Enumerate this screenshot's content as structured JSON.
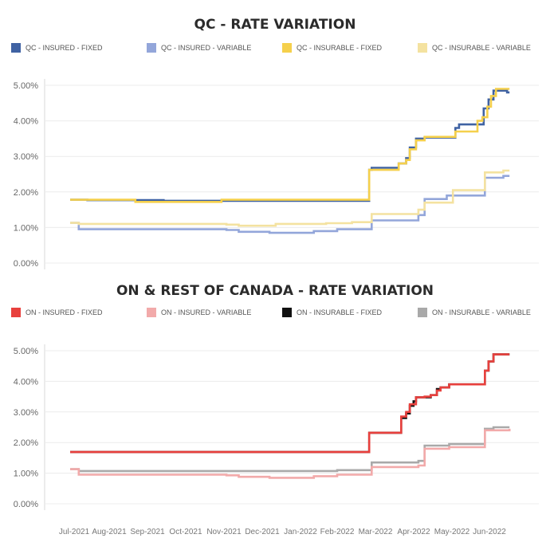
{
  "colors": {
    "qc_insured_fixed": "#3f62a3",
    "qc_insured_variable": "#93a6da",
    "qc_insurable_fixed": "#f5d04c",
    "qc_insurable_variable": "#f4e2a0",
    "on_insured_fixed": "#e8403d",
    "on_insured_variable": "#f2aaaa",
    "on_insurable_fixed": "#111111",
    "on_insurable_variable": "#a9a9a9"
  },
  "x_axis_labels": [
    "Jul-2021",
    "Aug-2021",
    "Sep-2021",
    "Oct-2021",
    "Nov-2021",
    "Dec-2021",
    "Jan-2022",
    "Feb-2022",
    "Mar-2022",
    "Apr-2022",
    "May-2022",
    "Jun-2022"
  ],
  "chart_data": [
    {
      "type": "line",
      "title": "QC - RATE VARIATION",
      "xlabel": "",
      "ylabel": "",
      "x_range": [
        "2021-07-01",
        "2022-06-30"
      ],
      "ylim": [
        0,
        5
      ],
      "y_ticks": [
        "0.00%",
        "1.00%",
        "2.00%",
        "3.00%",
        "4.00%",
        "5.00%"
      ],
      "grid": true,
      "legend_position": "top",
      "series": [
        {
          "name": "QC - INSURED - FIXED",
          "color_key": "qc_insured_fixed",
          "points": [
            [
              "2021-07-01",
              1.78
            ],
            [
              "2021-07-15",
              1.77
            ],
            [
              "2021-09-15",
              1.75
            ],
            [
              "2022-02-27",
              1.75
            ],
            [
              "2022-03-01",
              2.62
            ],
            [
              "2022-03-03",
              2.68
            ],
            [
              "2022-03-25",
              2.8
            ],
            [
              "2022-03-31",
              2.95
            ],
            [
              "2022-04-03",
              3.25
            ],
            [
              "2022-04-08",
              3.5
            ],
            [
              "2022-04-15",
              3.53
            ],
            [
              "2022-04-20",
              3.53
            ],
            [
              "2022-05-05",
              3.53
            ],
            [
              "2022-05-10",
              3.8
            ],
            [
              "2022-05-13",
              3.9
            ],
            [
              "2022-06-01",
              3.9
            ],
            [
              "2022-06-02",
              4.35
            ],
            [
              "2022-06-06",
              4.6
            ],
            [
              "2022-06-10",
              4.85
            ],
            [
              "2022-06-18",
              4.85
            ],
            [
              "2022-06-21",
              4.8
            ],
            [
              "2022-06-23",
              4.8
            ]
          ]
        },
        {
          "name": "QC - INSURED - VARIABLE",
          "color_key": "qc_insured_variable",
          "points": [
            [
              "2021-07-01",
              1.13
            ],
            [
              "2021-07-08",
              0.95
            ],
            [
              "2021-11-05",
              0.93
            ],
            [
              "2021-11-15",
              0.88
            ],
            [
              "2021-12-10",
              0.85
            ],
            [
              "2022-01-15",
              0.9
            ],
            [
              "2022-02-03",
              0.95
            ],
            [
              "2022-03-01",
              0.95
            ],
            [
              "2022-03-03",
              1.2
            ],
            [
              "2022-04-10",
              1.35
            ],
            [
              "2022-04-15",
              1.8
            ],
            [
              "2022-05-01",
              1.8
            ],
            [
              "2022-05-03",
              1.9
            ],
            [
              "2022-06-01",
              1.9
            ],
            [
              "2022-06-03",
              2.4
            ],
            [
              "2022-06-18",
              2.45
            ],
            [
              "2022-06-23",
              2.45
            ]
          ]
        },
        {
          "name": "QC - INSURABLE - FIXED",
          "color_key": "qc_insurable_fixed",
          "points": [
            [
              "2021-07-01",
              1.78
            ],
            [
              "2021-07-15",
              1.78
            ],
            [
              "2021-08-23",
              1.72
            ],
            [
              "2021-11-01",
              1.78
            ],
            [
              "2022-02-27",
              1.78
            ],
            [
              "2022-03-01",
              2.62
            ],
            [
              "2022-03-25",
              2.8
            ],
            [
              "2022-03-31",
              2.9
            ],
            [
              "2022-04-03",
              3.2
            ],
            [
              "2022-04-08",
              3.45
            ],
            [
              "2022-04-15",
              3.55
            ],
            [
              "2022-05-05",
              3.55
            ],
            [
              "2022-05-10",
              3.7
            ],
            [
              "2022-05-25",
              3.7
            ],
            [
              "2022-05-28",
              4.0
            ],
            [
              "2022-06-01",
              4.1
            ],
            [
              "2022-06-05",
              4.4
            ],
            [
              "2022-06-08",
              4.7
            ],
            [
              "2022-06-12",
              4.9
            ],
            [
              "2022-06-23",
              4.9
            ]
          ]
        },
        {
          "name": "QC - INSURABLE - VARIABLE",
          "color_key": "qc_insurable_variable",
          "points": [
            [
              "2021-07-01",
              1.13
            ],
            [
              "2021-07-08",
              1.1
            ],
            [
              "2021-11-05",
              1.08
            ],
            [
              "2021-11-15",
              1.05
            ],
            [
              "2021-12-01",
              1.05
            ],
            [
              "2021-12-15",
              1.1
            ],
            [
              "2022-01-25",
              1.12
            ],
            [
              "2022-02-15",
              1.15
            ],
            [
              "2022-03-01",
              1.15
            ],
            [
              "2022-03-03",
              1.38
            ],
            [
              "2022-04-05",
              1.38
            ],
            [
              "2022-04-10",
              1.5
            ],
            [
              "2022-04-15",
              1.7
            ],
            [
              "2022-05-05",
              1.7
            ],
            [
              "2022-05-08",
              2.05
            ],
            [
              "2022-06-01",
              2.05
            ],
            [
              "2022-06-03",
              2.55
            ],
            [
              "2022-06-18",
              2.6
            ],
            [
              "2022-06-23",
              2.6
            ]
          ]
        }
      ]
    },
    {
      "type": "line",
      "title": "ON & REST OF CANADA - RATE VARIATION",
      "xlabel": "",
      "ylabel": "",
      "x_range": [
        "2021-07-01",
        "2022-06-30"
      ],
      "ylim": [
        0,
        5
      ],
      "y_ticks": [
        "0.00%",
        "1.00%",
        "2.00%",
        "3.00%",
        "4.00%",
        "5.00%"
      ],
      "grid": true,
      "legend_position": "top",
      "series": [
        {
          "name": "ON - INSURABLE - FIXED",
          "color_key": "on_insurable_fixed",
          "points": [
            [
              "2021-07-01",
              1.69
            ],
            [
              "2022-02-27",
              1.69
            ],
            [
              "2022-03-01",
              2.32
            ],
            [
              "2022-03-25",
              2.32
            ],
            [
              "2022-03-27",
              2.8
            ],
            [
              "2022-03-31",
              2.95
            ],
            [
              "2022-04-03",
              3.2
            ],
            [
              "2022-04-06",
              3.35
            ],
            [
              "2022-04-08",
              3.48
            ],
            [
              "2022-04-15",
              3.48
            ],
            [
              "2022-04-20",
              3.55
            ],
            [
              "2022-04-25",
              3.75
            ],
            [
              "2022-04-28",
              3.8
            ],
            [
              "2022-05-05",
              3.9
            ],
            [
              "2022-06-01",
              3.9
            ],
            [
              "2022-06-03",
              4.35
            ],
            [
              "2022-06-06",
              4.65
            ],
            [
              "2022-06-10",
              4.88
            ],
            [
              "2022-06-23",
              4.88
            ]
          ]
        },
        {
          "name": "ON - INSURABLE - VARIABLE",
          "color_key": "on_insurable_variable",
          "points": [
            [
              "2021-07-01",
              1.13
            ],
            [
              "2021-07-08",
              1.07
            ],
            [
              "2022-02-03",
              1.1
            ],
            [
              "2022-03-01",
              1.1
            ],
            [
              "2022-03-03",
              1.35
            ],
            [
              "2022-04-10",
              1.4
            ],
            [
              "2022-04-15",
              1.9
            ],
            [
              "2022-05-05",
              1.95
            ],
            [
              "2022-06-01",
              1.95
            ],
            [
              "2022-06-03",
              2.45
            ],
            [
              "2022-06-10",
              2.5
            ],
            [
              "2022-06-23",
              2.5
            ]
          ]
        },
        {
          "name": "ON - INSURED - VARIABLE",
          "color_key": "on_insured_variable",
          "points": [
            [
              "2021-07-01",
              1.13
            ],
            [
              "2021-07-08",
              0.95
            ],
            [
              "2021-11-05",
              0.93
            ],
            [
              "2021-11-15",
              0.88
            ],
            [
              "2021-12-10",
              0.85
            ],
            [
              "2022-01-15",
              0.9
            ],
            [
              "2022-02-03",
              0.95
            ],
            [
              "2022-03-01",
              0.95
            ],
            [
              "2022-03-03",
              1.2
            ],
            [
              "2022-04-10",
              1.25
            ],
            [
              "2022-04-15",
              1.8
            ],
            [
              "2022-05-05",
              1.85
            ],
            [
              "2022-06-01",
              1.85
            ],
            [
              "2022-06-03",
              2.4
            ],
            [
              "2022-06-23",
              2.45
            ]
          ]
        },
        {
          "name": "ON - INSURED - FIXED",
          "color_key": "on_insured_fixed",
          "points": [
            [
              "2021-07-01",
              1.69
            ],
            [
              "2022-02-27",
              1.69
            ],
            [
              "2022-03-01",
              2.32
            ],
            [
              "2022-03-25",
              2.32
            ],
            [
              "2022-03-27",
              2.85
            ],
            [
              "2022-03-31",
              3.0
            ],
            [
              "2022-04-03",
              3.25
            ],
            [
              "2022-04-08",
              3.48
            ],
            [
              "2022-04-15",
              3.5
            ],
            [
              "2022-04-20",
              3.55
            ],
            [
              "2022-04-25",
              3.7
            ],
            [
              "2022-04-28",
              3.8
            ],
            [
              "2022-05-05",
              3.9
            ],
            [
              "2022-06-01",
              3.9
            ],
            [
              "2022-06-03",
              4.35
            ],
            [
              "2022-06-06",
              4.65
            ],
            [
              "2022-06-10",
              4.88
            ],
            [
              "2022-06-23",
              4.88
            ]
          ]
        }
      ],
      "legend_order": [
        "ON - INSURED - FIXED",
        "ON - INSURED - VARIABLE",
        "ON - INSURABLE - FIXED",
        "ON - INSURABLE - VARIABLE"
      ],
      "legend_colors": [
        "on_insured_fixed",
        "on_insured_variable",
        "on_insurable_fixed",
        "on_insurable_variable"
      ]
    }
  ]
}
